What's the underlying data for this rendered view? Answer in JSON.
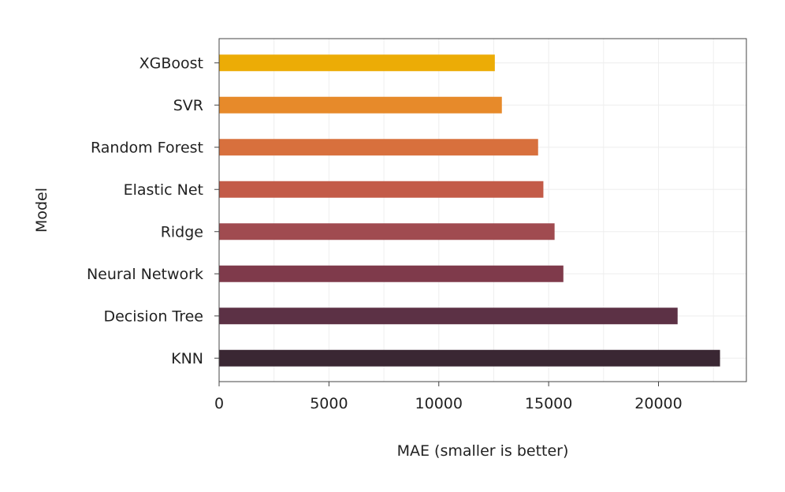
{
  "chart_data": {
    "type": "bar",
    "orientation": "horizontal",
    "categories": [
      "XGBoost",
      "SVR",
      "Random Forest",
      "Elastic Net",
      "Ridge",
      "Neural Network",
      "Decision Tree",
      "KNN"
    ],
    "values": [
      12550,
      12870,
      14520,
      14760,
      15270,
      15670,
      20870,
      22800
    ],
    "colors": [
      "#ecac06",
      "#e78a2a",
      "#d8703d",
      "#c35b48",
      "#a04b50",
      "#7f3a4b",
      "#5c3145",
      "#3a2733"
    ],
    "xlabel": "MAE (smaller is better)",
    "ylabel": "Model",
    "xlim": [
      0,
      24000
    ],
    "x_ticks": [
      0,
      5000,
      10000,
      15000,
      20000
    ],
    "grid": true,
    "legend": "none"
  }
}
